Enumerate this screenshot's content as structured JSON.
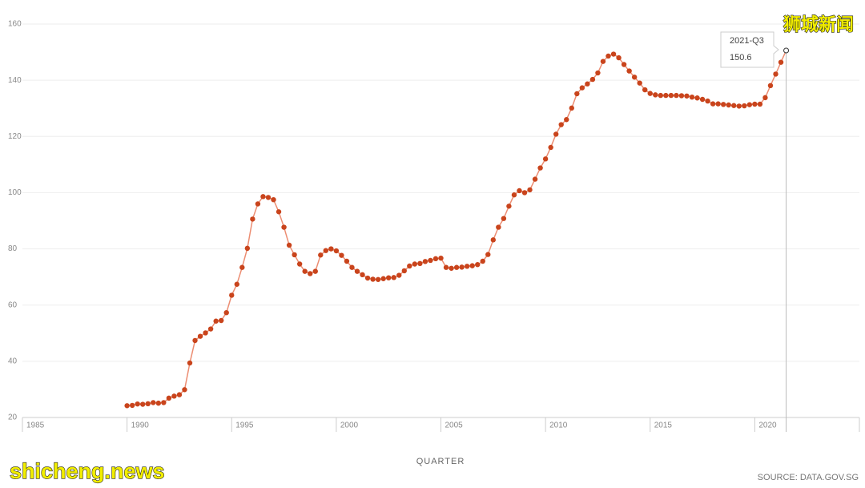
{
  "chart_data": {
    "type": "line",
    "x_label": "QUARTER",
    "source": "SOURCE: DATA.GOV.SG",
    "xlim": [
      1985,
      2025
    ],
    "xticks": [
      1985,
      1990,
      1995,
      2000,
      2005,
      2010,
      2015,
      2020
    ],
    "ylim": [
      20,
      160
    ],
    "yticks": [
      20,
      40,
      60,
      80,
      100,
      120,
      140,
      160
    ],
    "grid": true,
    "tooltip": {
      "label": "2021-Q3"
    },
    "x": [
      1990,
      1990.25,
      1990.5,
      1990.75,
      1991,
      1991.25,
      1991.5,
      1991.75,
      1992,
      1992.25,
      1992.5,
      1992.75,
      1993,
      1993.25,
      1993.5,
      1993.75,
      1994,
      1994.25,
      1994.5,
      1994.75,
      1995,
      1995.25,
      1995.5,
      1995.75,
      1996,
      1996.25,
      1996.5,
      1996.75,
      1997,
      1997.25,
      1997.5,
      1997.75,
      1998,
      1998.25,
      1998.5,
      1998.75,
      1999,
      1999.25,
      1999.5,
      1999.75,
      2000,
      2000.25,
      2000.5,
      2000.75,
      2001,
      2001.25,
      2001.5,
      2001.75,
      2002,
      2002.25,
      2002.5,
      2002.75,
      2003,
      2003.25,
      2003.5,
      2003.75,
      2004,
      2004.25,
      2004.5,
      2004.75,
      2005,
      2005.25,
      2005.5,
      2005.75,
      2006,
      2006.25,
      2006.5,
      2006.75,
      2007,
      2007.25,
      2007.5,
      2007.75,
      2008,
      2008.25,
      2008.5,
      2008.75,
      2009,
      2009.25,
      2009.5,
      2009.75,
      2010,
      2010.25,
      2010.5,
      2010.75,
      2011,
      2011.25,
      2011.5,
      2011.75,
      2012,
      2012.25,
      2012.5,
      2012.75,
      2013,
      2013.25,
      2013.5,
      2013.75,
      2014,
      2014.25,
      2014.5,
      2014.75,
      2015,
      2015.25,
      2015.5,
      2015.75,
      2016,
      2016.25,
      2016.5,
      2016.75,
      2017,
      2017.25,
      2017.5,
      2017.75,
      2018,
      2018.25,
      2018.5,
      2018.75,
      2019,
      2019.25,
      2019.5,
      2019.75,
      2020,
      2020.25,
      2020.5,
      2020.75,
      2021,
      2021.25,
      2021.5
    ],
    "series": [
      {
        "color": "#c9441c",
        "line_color": "#ec8d72",
        "values": [
          24.2,
          24.3,
          24.8,
          24.7,
          24.9,
          25.3,
          25.1,
          25.3,
          26.9,
          27.6,
          28.1,
          29.9,
          39.4,
          47.4,
          48.9,
          50.1,
          51.5,
          54.3,
          54.5,
          57.3,
          63.5,
          67.4,
          73.4,
          80.2,
          90.6,
          96.0,
          98.6,
          98.3,
          97.5,
          93.2,
          87.7,
          81.3,
          77.9,
          74.6,
          72.0,
          71.2,
          72.0,
          77.8,
          79.4,
          80.0,
          79.3,
          77.7,
          75.6,
          73.4,
          72.0,
          70.8,
          69.6,
          69.2,
          69.1,
          69.4,
          69.7,
          69.8,
          70.6,
          72.2,
          73.9,
          74.6,
          74.8,
          75.5,
          75.9,
          76.5,
          76.7,
          73.4,
          73.1,
          73.4,
          73.5,
          73.8,
          74.0,
          74.4,
          75.6,
          78.0,
          83.2,
          87.7,
          90.8,
          95.2,
          99.2,
          100.7,
          100.0,
          101.0,
          104.8,
          108.8,
          112.0,
          116.1,
          120.8,
          124.2,
          126.0,
          130.1,
          135.2,
          137.3,
          138.7,
          140.3,
          142.6,
          146.7,
          148.6,
          149.3,
          148.0,
          145.6,
          143.3,
          141.1,
          139.0,
          136.6,
          135.3,
          134.8,
          134.6,
          134.6,
          134.6,
          134.6,
          134.5,
          134.4,
          134.0,
          133.7,
          133.2,
          132.6,
          131.6,
          131.6,
          131.4,
          131.2,
          131.0,
          130.8,
          130.9,
          131.3,
          131.5,
          131.5,
          133.8,
          138.1,
          142.2,
          146.4,
          150.6
        ]
      }
    ]
  },
  "watermarks": {
    "top": "狮城新闻",
    "bottom": "shicheng.news"
  }
}
